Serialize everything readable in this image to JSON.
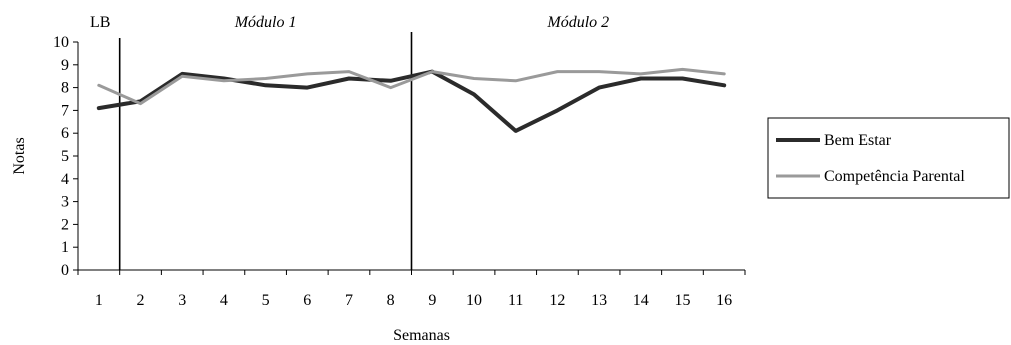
{
  "chart_data": {
    "type": "line",
    "xlabel": "Semanas",
    "ylabel": "Notas",
    "ylim": [
      0,
      10
    ],
    "categories": [
      "1",
      "2",
      "3",
      "4",
      "5",
      "6",
      "7",
      "8",
      "9",
      "10",
      "11",
      "12",
      "13",
      "14",
      "15",
      "16"
    ],
    "yticks": [
      "0",
      "1",
      "2",
      "3",
      "4",
      "5",
      "6",
      "7",
      "8",
      "9",
      "10"
    ],
    "phases": [
      {
        "label": "LB",
        "italic": false
      },
      {
        "label": "Módulo 1",
        "italic": true
      },
      {
        "label": "Módulo 2",
        "italic": true
      }
    ],
    "phase_change_after": [
      1,
      8
    ],
    "legend_position": "right",
    "series": [
      {
        "name": "Bem Estar",
        "color": "#2b2b2b",
        "values": [
          7.1,
          7.4,
          8.6,
          8.4,
          8.1,
          8.0,
          8.4,
          8.3,
          8.7,
          7.7,
          6.1,
          7.0,
          8.0,
          8.4,
          8.4,
          8.1
        ]
      },
      {
        "name": "Competência Parental",
        "color": "#9a9a9a",
        "values": [
          8.1,
          7.3,
          8.5,
          8.3,
          8.4,
          8.6,
          8.7,
          8.0,
          8.7,
          8.4,
          8.3,
          8.7,
          8.7,
          8.6,
          8.8,
          8.6
        ]
      }
    ]
  }
}
